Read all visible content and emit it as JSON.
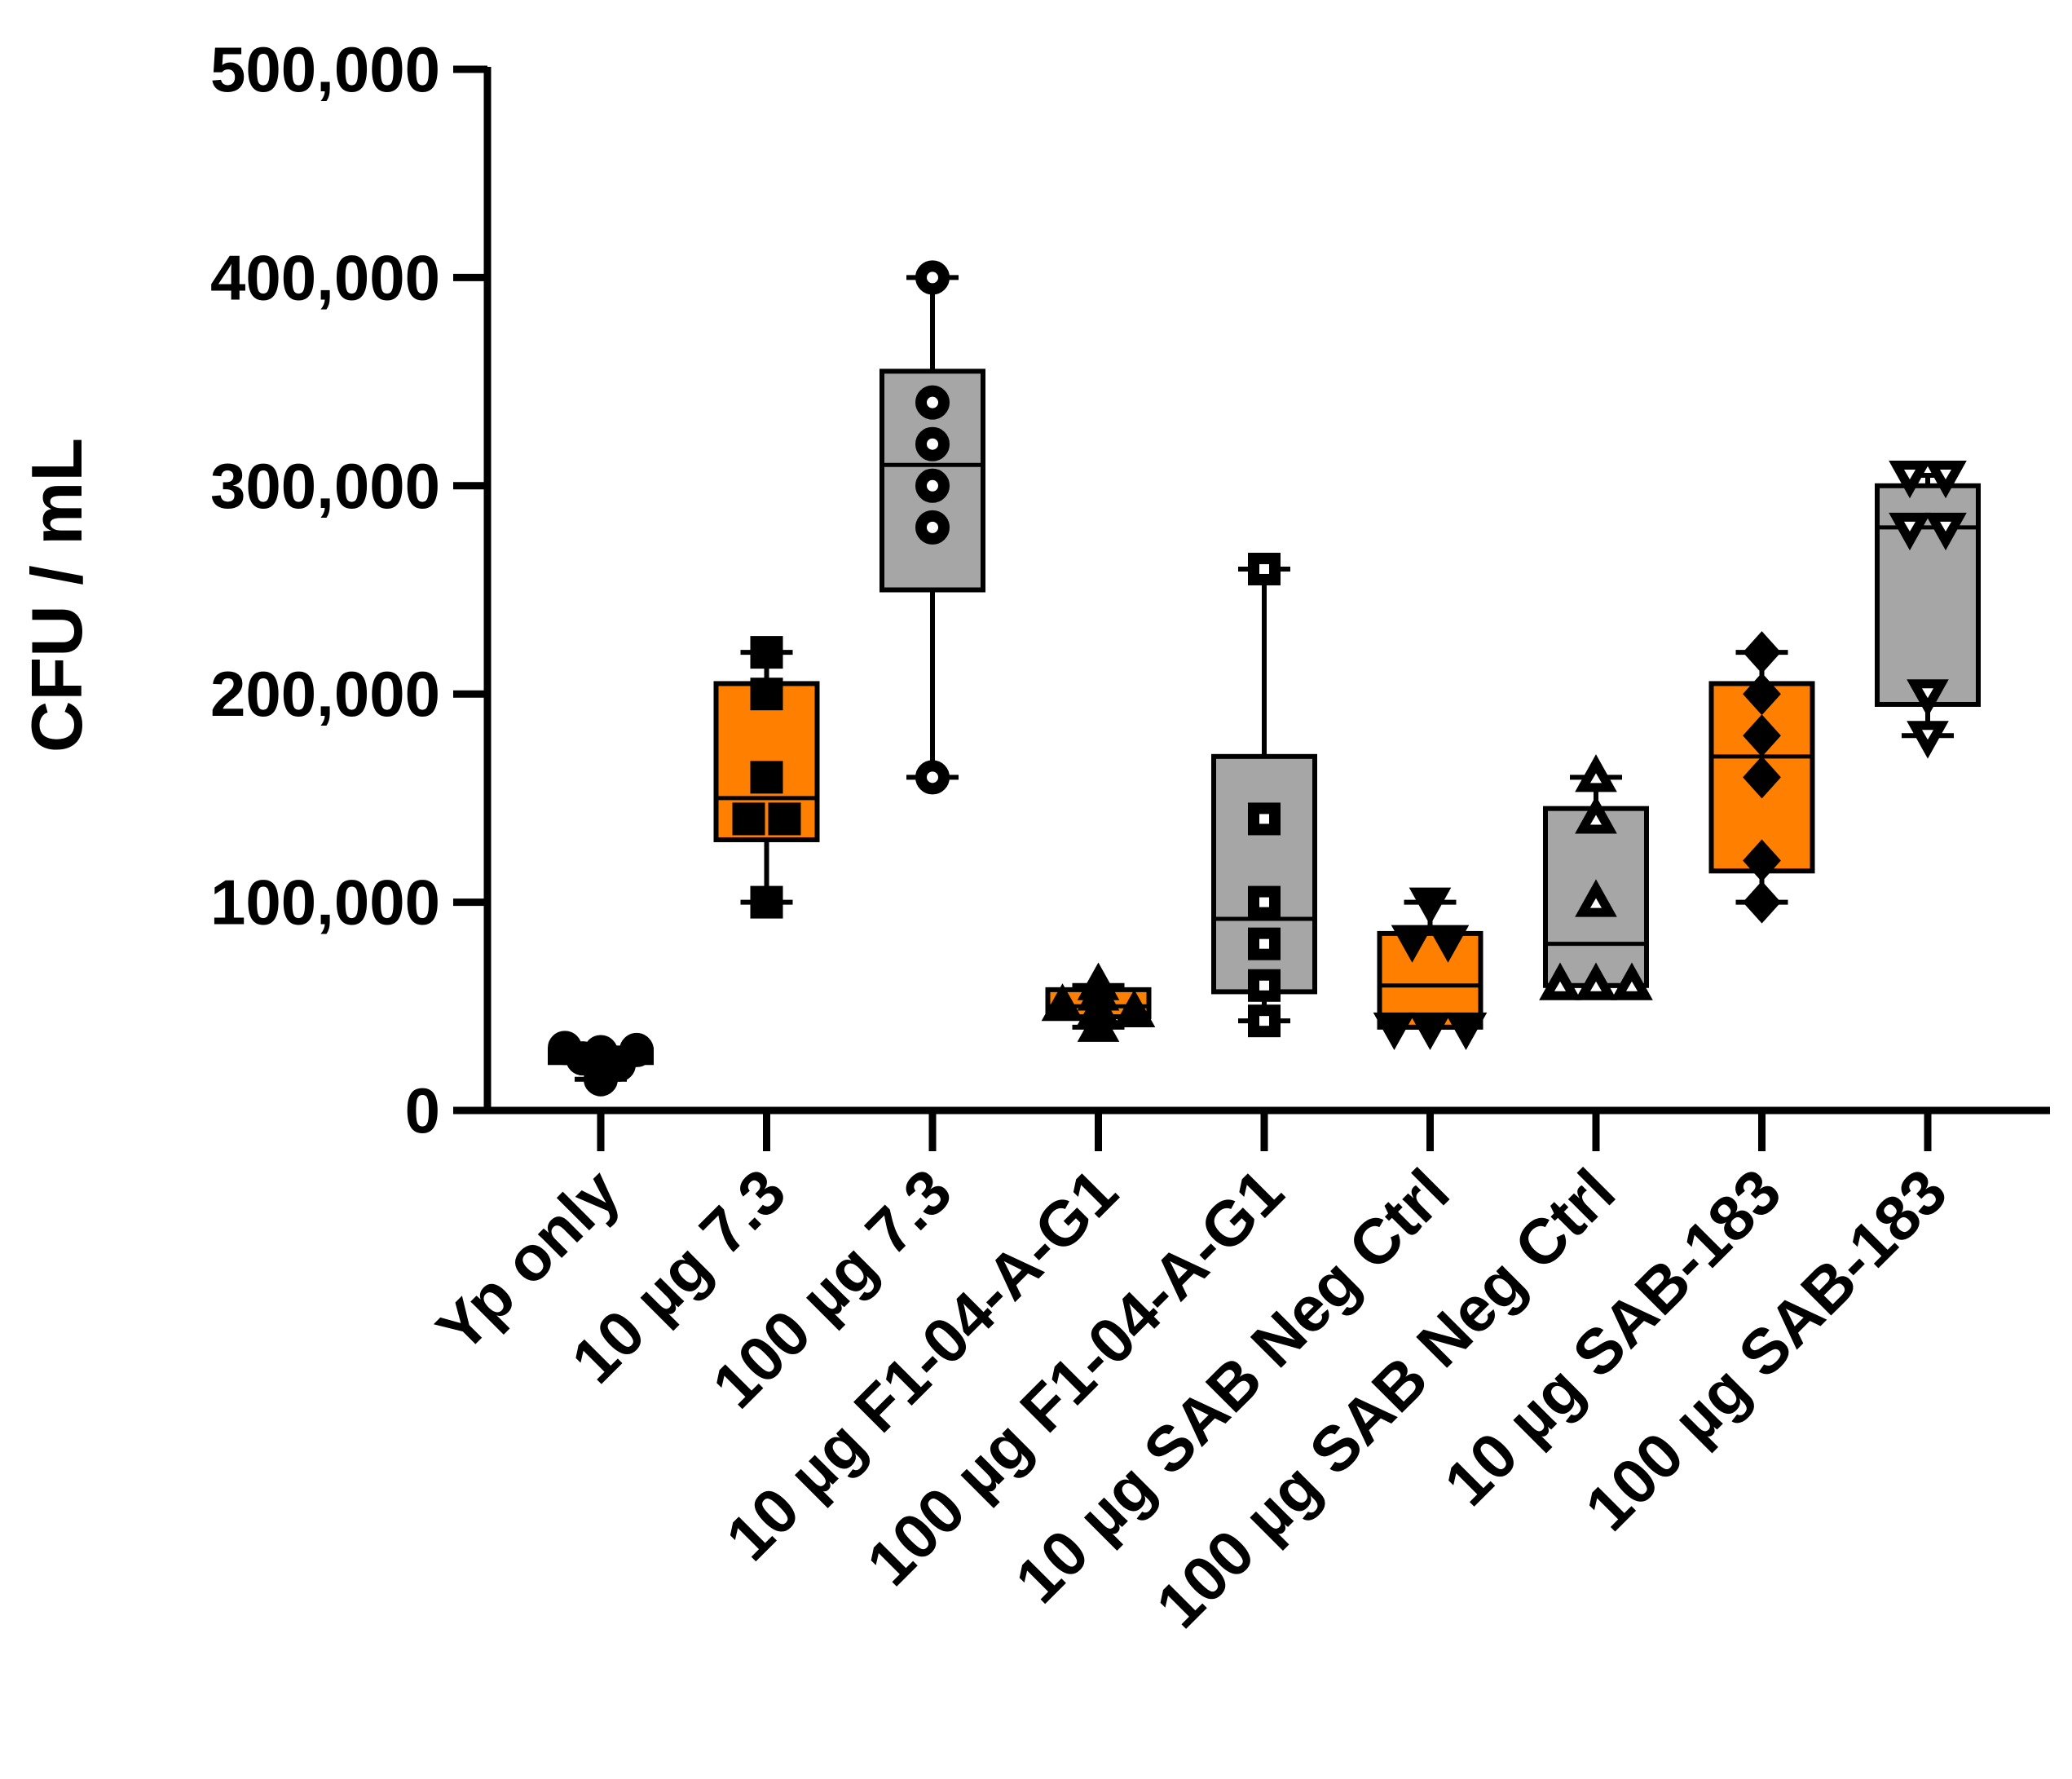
{
  "chart_data": {
    "type": "box",
    "title": "",
    "xlabel": "",
    "ylabel": "CFU / mL",
    "ylim": [
      0,
      500000
    ],
    "yticks": [
      0,
      100000,
      200000,
      300000,
      400000,
      500000
    ],
    "ytick_labels": [
      "0",
      "100,000",
      "200,000",
      "300,000",
      "400,000",
      "500,000"
    ],
    "grid": false,
    "colors": {
      "orange": "#FF7F00",
      "gray": "#A6A6A6",
      "ink": "#000000"
    },
    "groups": [
      {
        "label": "Yp only",
        "color": "#FFFFFF",
        "marker": "circle-filled",
        "min": 15000,
        "q1": 23000,
        "median": 25000,
        "q3": 29000,
        "max": 30000,
        "points": [
          30000,
          28000,
          25000,
          22000,
          15000,
          29000
        ]
      },
      {
        "label": "10 µg 7.3",
        "color": "#FF7F00",
        "marker": "square-filled",
        "min": 100000,
        "q1": 130000,
        "median": 150000,
        "q3": 205000,
        "max": 220000,
        "points": [
          220000,
          200000,
          160000,
          140000,
          140000,
          100000
        ]
      },
      {
        "label": "100 µg 7.3",
        "color": "#A6A6A6",
        "marker": "circle-open",
        "min": 160000,
        "q1": 250000,
        "median": 310000,
        "q3": 355000,
        "max": 400000,
        "points": [
          400000,
          340000,
          320000,
          300000,
          280000,
          160000
        ]
      },
      {
        "label": "10 µg F1-04-A-G1",
        "color": "#FF7F00",
        "marker": "triangle-up-filled",
        "min": 40000,
        "q1": 45000,
        "median": 50000,
        "q3": 58000,
        "max": 60000,
        "points": [
          60000,
          55000,
          50000,
          48000,
          47000,
          40000
        ]
      },
      {
        "label": "100 µg F1-04-A-G1",
        "color": "#A6A6A6",
        "marker": "square-open",
        "min": 43000,
        "q1": 57000,
        "median": 92000,
        "q3": 170000,
        "max": 260000,
        "points": [
          260000,
          140000,
          100000,
          80000,
          60000,
          43000
        ]
      },
      {
        "label": "10 µg SAB Neg Ctrl",
        "color": "#FF7F00",
        "marker": "triangle-down-filled",
        "min": 40000,
        "q1": 40000,
        "median": 60000,
        "q3": 85000,
        "max": 100000,
        "points": [
          100000,
          82000,
          82000,
          40000,
          40000,
          40000
        ]
      },
      {
        "label": "100 µg SAB Neg Ctrl",
        "color": "#A6A6A6",
        "marker": "triangle-up-open",
        "min": 60000,
        "q1": 60000,
        "median": 80000,
        "q3": 145000,
        "max": 160000,
        "points": [
          160000,
          140000,
          100000,
          60000,
          60000,
          60000
        ]
      },
      {
        "label": "10 µg SAB-183",
        "color": "#FF7F00",
        "marker": "diamond-filled",
        "min": 100000,
        "q1": 115000,
        "median": 170000,
        "q3": 205000,
        "max": 220000,
        "points": [
          220000,
          200000,
          180000,
          160000,
          120000,
          100000
        ]
      },
      {
        "label": "100 µg SAB-183",
        "color": "#A6A6A6",
        "marker": "triangle-down-open",
        "min": 180000,
        "q1": 195000,
        "median": 280000,
        "q3": 300000,
        "max": 305000,
        "points": [
          305000,
          305000,
          280000,
          280000,
          200000,
          180000
        ]
      }
    ]
  }
}
